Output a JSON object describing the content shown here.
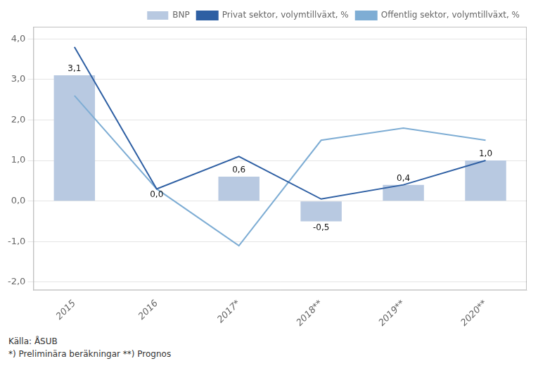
{
  "chart_data": {
    "type": "bar",
    "categories": [
      "2015",
      "2016",
      "2017*",
      "2018**",
      "2019**",
      "2020**"
    ],
    "series": [
      {
        "name": "BNP",
        "type": "bar",
        "color": "#b8c9e1",
        "values": [
          3.1,
          0.0,
          0.6,
          -0.5,
          0.4,
          1.0
        ],
        "value_labels": [
          "3,1",
          "0,0",
          "0,6",
          "-0,5",
          "0,4",
          "1,0"
        ]
      },
      {
        "name": "Privat sektor, volymtillväxt, %",
        "type": "line",
        "color": "#2e5fa3",
        "marker": "none",
        "line_style": "solid",
        "values": [
          3.8,
          0.3,
          1.1,
          0.05,
          0.4,
          1.0
        ]
      },
      {
        "name": "Offentlig sektor, volymtillväxt, %",
        "type": "line",
        "color": "#7eadd4",
        "marker": "none",
        "line_style": "solid",
        "values": [
          2.6,
          0.3,
          -1.1,
          1.5,
          1.8,
          1.5
        ]
      }
    ],
    "ylim": [
      -2.2,
      4.3
    ],
    "yticks": [
      {
        "value": -2.0,
        "label": "-2,0"
      },
      {
        "value": -1.0,
        "label": "-1,0"
      },
      {
        "value": 0.0,
        "label": "0,0"
      },
      {
        "value": 1.0,
        "label": "1,0"
      },
      {
        "value": 2.0,
        "label": "2,0"
      },
      {
        "value": 3.0,
        "label": "3,0"
      },
      {
        "value": 4.0,
        "label": "4,0"
      }
    ],
    "grid": "y",
    "legend": "upper right",
    "data_labels": true,
    "annotations": [
      "Källa: ÅSUB",
      "*) Preliminära beräkningar **) Prognos"
    ]
  }
}
